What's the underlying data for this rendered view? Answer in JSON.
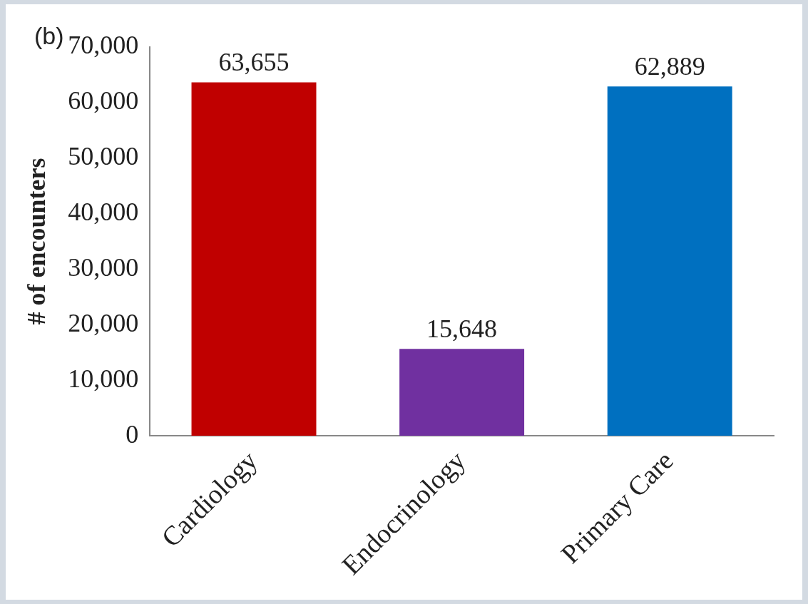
{
  "chart_data": {
    "type": "bar",
    "annotations": [
      "(b)"
    ],
    "ylabel": "# of encounters",
    "categories": [
      "Cardiology",
      "Endocrinology",
      "Primary Care"
    ],
    "values": [
      63655,
      15648,
      62889
    ],
    "value_labels": [
      "63,655",
      "15,648",
      "62,889"
    ],
    "colors": [
      "#c00000",
      "#7030a0",
      "#0070c0"
    ],
    "ylim": [
      0,
      70000
    ],
    "yticks": [
      0,
      {
        "value": 10000,
        "label": "10,000"
      },
      {
        "value": 20000,
        "label": "20,000"
      },
      {
        "value": 30000,
        "label": "30,000"
      },
      {
        "value": 40000,
        "label": "40,000"
      },
      {
        "value": 50000,
        "label": "50,000"
      },
      {
        "value": 60000,
        "label": "60,000"
      },
      {
        "value": 70000,
        "label": "70,000"
      }
    ],
    "grid": false,
    "legend": false
  }
}
